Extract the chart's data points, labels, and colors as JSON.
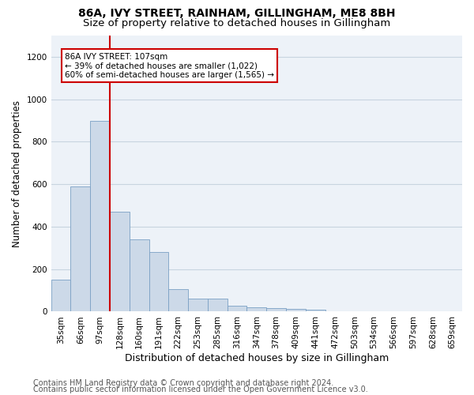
{
  "title_line1": "86A, IVY STREET, RAINHAM, GILLINGHAM, ME8 8BH",
  "title_line2": "Size of property relative to detached houses in Gillingham",
  "xlabel": "Distribution of detached houses by size in Gillingham",
  "ylabel": "Number of detached properties",
  "bar_color": "#ccd9e8",
  "bar_edge_color": "#7aa0c4",
  "vline_color": "#cc0000",
  "vline_x": 2.5,
  "annotation_text": "86A IVY STREET: 107sqm\n← 39% of detached houses are smaller (1,022)\n60% of semi-detached houses are larger (1,565) →",
  "annotation_box_color": "white",
  "annotation_box_edge_color": "#cc0000",
  "categories": [
    "35sqm",
    "66sqm",
    "97sqm",
    "128sqm",
    "160sqm",
    "191sqm",
    "222sqm",
    "253sqm",
    "285sqm",
    "316sqm",
    "347sqm",
    "378sqm",
    "409sqm",
    "441sqm",
    "472sqm",
    "503sqm",
    "534sqm",
    "566sqm",
    "597sqm",
    "628sqm",
    "659sqm"
  ],
  "values": [
    152,
    590,
    900,
    470,
    340,
    280,
    105,
    60,
    60,
    27,
    22,
    15,
    12,
    10,
    0,
    0,
    0,
    0,
    0,
    0,
    0
  ],
  "ylim": [
    0,
    1300
  ],
  "yticks": [
    0,
    200,
    400,
    600,
    800,
    1000,
    1200
  ],
  "footer_line1": "Contains HM Land Registry data © Crown copyright and database right 2024.",
  "footer_line2": "Contains public sector information licensed under the Open Government Licence v3.0.",
  "background_color": "#edf2f8",
  "grid_color": "#c8d4e0",
  "title_fontsize": 10,
  "subtitle_fontsize": 9.5,
  "axis_label_fontsize": 8.5,
  "tick_fontsize": 7.5,
  "footer_fontsize": 7
}
